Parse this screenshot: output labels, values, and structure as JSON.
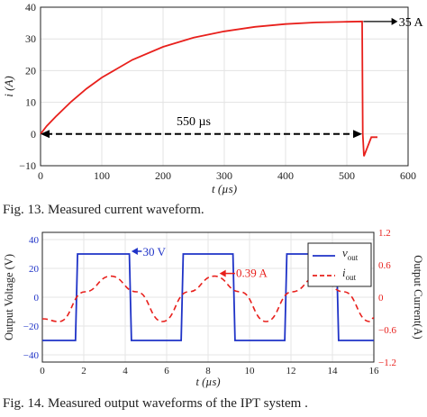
{
  "figure13": {
    "caption": "Fig. 13.  Measured current waveform."
  },
  "figure14": {
    "caption": "Fig. 14.  Measured output waveforms of the IPT system ."
  },
  "chart_data": [
    {
      "type": "line",
      "ylabel": "i (A)",
      "xlabel": "t (µs)",
      "xlim": [
        0,
        600
      ],
      "ylim": [
        -10,
        40
      ],
      "xticks": [
        0,
        100,
        200,
        300,
        400,
        500,
        600
      ],
      "yticks": [
        -10,
        0,
        10,
        20,
        30,
        40
      ],
      "grid": true,
      "series": [
        {
          "color": "#e8201c",
          "x": [
            0,
            10,
            25,
            50,
            75,
            100,
            150,
            200,
            250,
            300,
            350,
            400,
            450,
            500,
            525,
            526,
            528,
            540,
            550
          ],
          "y": [
            0,
            2.5,
            5.5,
            10.2,
            14.3,
            17.8,
            23.4,
            27.5,
            30.4,
            32.4,
            33.8,
            34.7,
            35.2,
            35.4,
            35.5,
            0,
            -7,
            -1,
            -1
          ]
        }
      ],
      "annotations": [
        {
          "text": "35 A"
        },
        {
          "text": "550 µs"
        }
      ]
    },
    {
      "type": "line",
      "xlabel": "t (µs)",
      "ylabel": "Output Voltage (V)",
      "ylabel_right": "Output Current(A)",
      "xlim": [
        0,
        16
      ],
      "ylim": [
        -45,
        45
      ],
      "ylim_right": [
        -1.2,
        1.2
      ],
      "xticks": [
        0,
        2,
        4,
        6,
        8,
        10,
        12,
        14,
        16
      ],
      "yticks": [
        -40,
        -20,
        0,
        20,
        40
      ],
      "yticks_right": [
        -1.2,
        -0.6,
        0,
        0.6,
        1.2
      ],
      "grid": true,
      "legend": "top-right",
      "series": [
        {
          "name": "v_out",
          "legend_main": "v",
          "legend_sub": "out",
          "color": "#1f33c7",
          "axis": "left",
          "x": [
            0,
            1.6,
            1.7,
            4.2,
            4.3,
            6.7,
            6.8,
            9.2,
            9.3,
            11.7,
            11.8,
            14.2,
            14.3,
            16
          ],
          "y": [
            -30,
            -30,
            30,
            30,
            -30,
            -30,
            30,
            30,
            -30,
            -30,
            30,
            30,
            -30,
            -30
          ]
        },
        {
          "name": "i_out",
          "legend_main": "i",
          "legend_sub": "out",
          "color": "#e8201c",
          "axis": "right",
          "dashed": true,
          "x": [
            0,
            0.8,
            2.05,
            3.3,
            4.55,
            5.8,
            7.05,
            8.3,
            9.55,
            10.8,
            12.05,
            13.3,
            14.55,
            15.8,
            16
          ],
          "y": [
            -0.4,
            -0.45,
            0.1,
            0.39,
            0.1,
            -0.45,
            0.1,
            0.39,
            0.1,
            -0.45,
            0.1,
            0.39,
            0.1,
            -0.45,
            -0.38
          ]
        }
      ],
      "annotations": [
        {
          "text": "30 V"
        },
        {
          "text": "0.39 A"
        }
      ]
    }
  ]
}
